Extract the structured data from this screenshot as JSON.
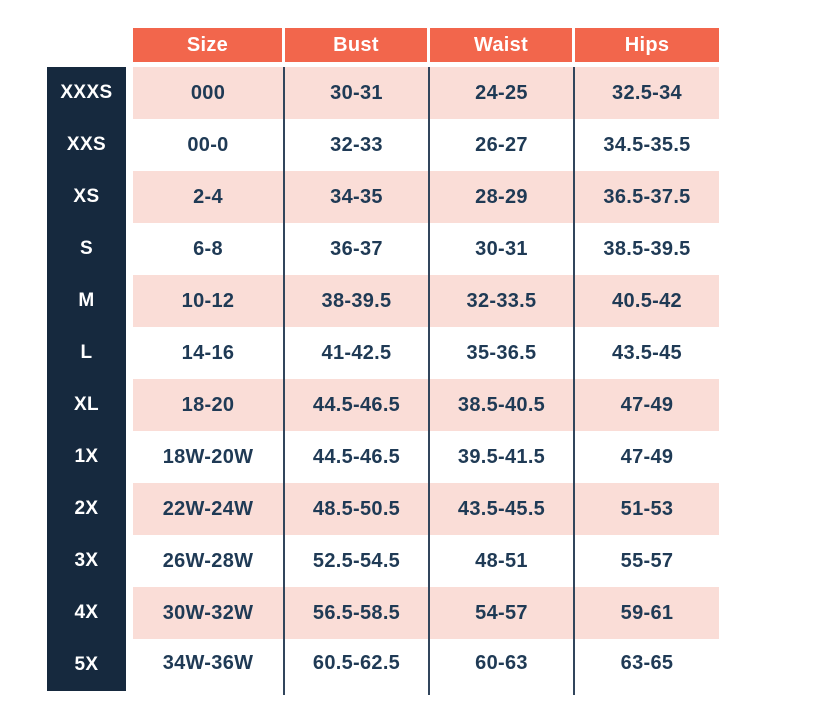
{
  "chart_data": {
    "type": "table",
    "title": "",
    "columns": [
      "Size",
      "Bust",
      "Waist",
      "Hips"
    ],
    "rows": [
      {
        "label": "XXXS",
        "size": "000",
        "bust": "30-31",
        "waist": "24-25",
        "hips": "32.5-34"
      },
      {
        "label": "XXS",
        "size": "00-0",
        "bust": "32-33",
        "waist": "26-27",
        "hips": "34.5-35.5"
      },
      {
        "label": "XS",
        "size": "2-4",
        "bust": "34-35",
        "waist": "28-29",
        "hips": "36.5-37.5"
      },
      {
        "label": "S",
        "size": "6-8",
        "bust": "36-37",
        "waist": "30-31",
        "hips": "38.5-39.5"
      },
      {
        "label": "M",
        "size": "10-12",
        "bust": "38-39.5",
        "waist": "32-33.5",
        "hips": "40.5-42"
      },
      {
        "label": "L",
        "size": "14-16",
        "bust": "41-42.5",
        "waist": "35-36.5",
        "hips": "43.5-45"
      },
      {
        "label": "XL",
        "size": "18-20",
        "bust": "44.5-46.5",
        "waist": "38.5-40.5",
        "hips": "47-49"
      },
      {
        "label": "1X",
        "size": "18W-20W",
        "bust": "44.5-46.5",
        "waist": "39.5-41.5",
        "hips": "47-49"
      },
      {
        "label": "2X",
        "size": "22W-24W",
        "bust": "48.5-50.5",
        "waist": "43.5-45.5",
        "hips": "51-53"
      },
      {
        "label": "3X",
        "size": "26W-28W",
        "bust": "52.5-54.5",
        "waist": "48-51",
        "hips": "55-57"
      },
      {
        "label": "4X",
        "size": "30W-32W",
        "bust": "56.5-58.5",
        "waist": "54-57",
        "hips": "59-61"
      },
      {
        "label": "5X",
        "size": "34W-36W",
        "bust": "60.5-62.5",
        "waist": "60-63",
        "hips": "63-65"
      }
    ],
    "colors": {
      "page_bg": "#ffffff",
      "header_bg": "#f2664c",
      "header_text": "#ffffff",
      "label_bg": "#16293e",
      "row_pink": "#faddd7",
      "row_white": "#ffffff",
      "text_navy": "#1f3a55",
      "divider": "#31455c"
    },
    "layout": {
      "row_striping": "first row pink, alternating pink/white",
      "grid": "thin navy vertical dividers between data columns only",
      "legend_position": "none"
    }
  }
}
